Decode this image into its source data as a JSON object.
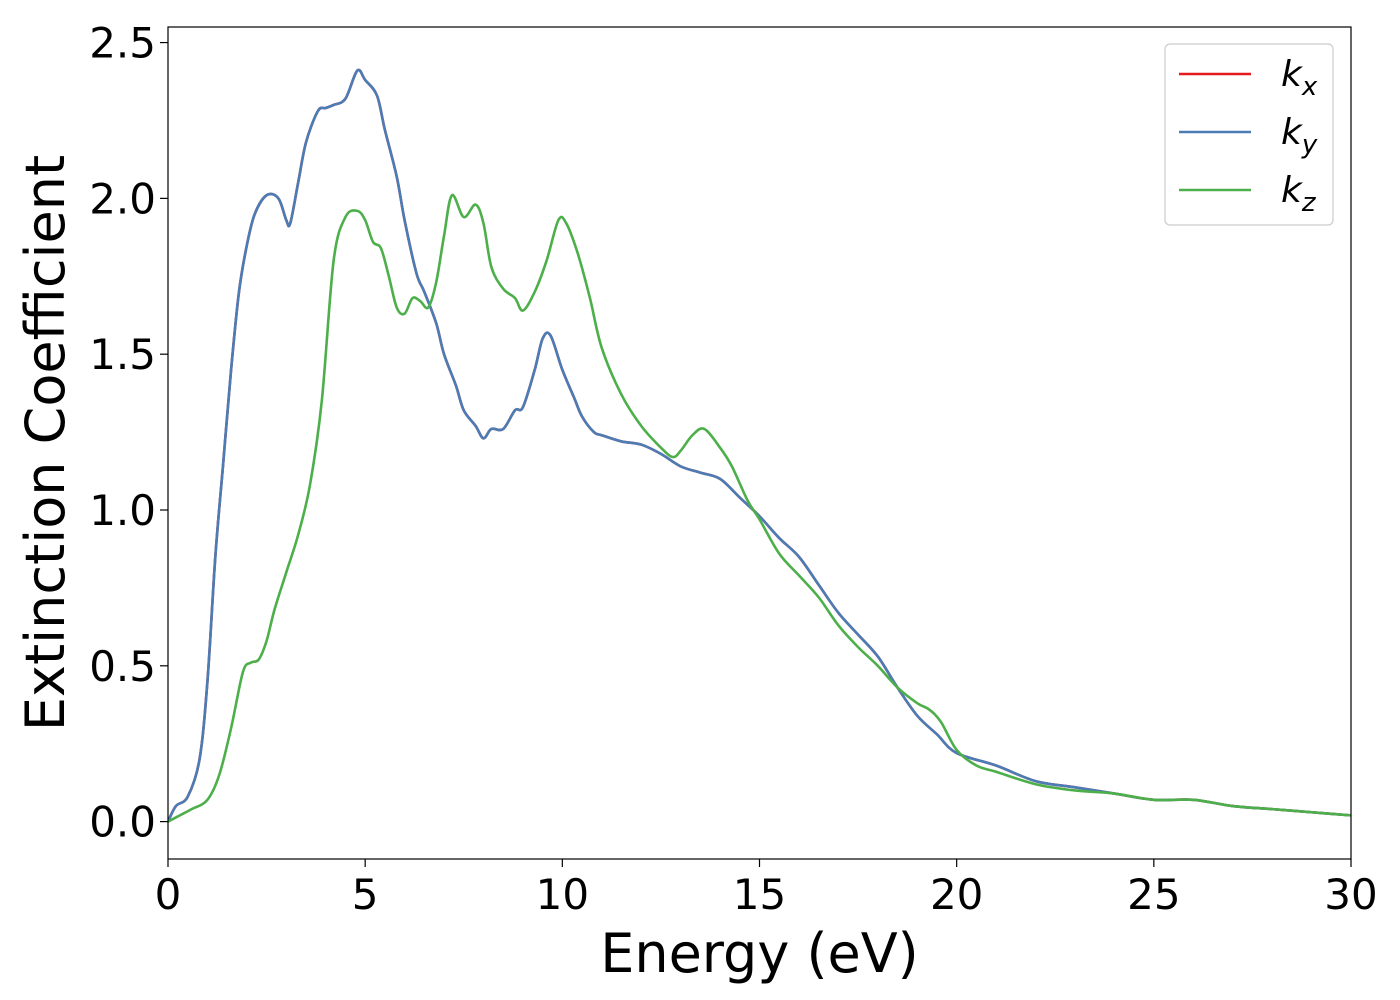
{
  "chart_data": {
    "type": "line",
    "title": "",
    "xlabel": "Energy (eV)",
    "ylabel": "Extinction Coefficient",
    "xlim": [
      0,
      30
    ],
    "ylim": [
      -0.12,
      2.55
    ],
    "xticks": [
      0,
      5,
      10,
      15,
      20,
      25,
      30
    ],
    "xtick_labels": [
      "0",
      "5",
      "10",
      "15",
      "20",
      "25",
      "30"
    ],
    "yticks": [
      0.0,
      0.5,
      1.0,
      1.5,
      2.0,
      2.5
    ],
    "ytick_labels": [
      "0.0",
      "0.5",
      "1.0",
      "1.5",
      "2.0",
      "2.5"
    ],
    "grid": false,
    "legend_position": "top-right",
    "series": [
      {
        "name": "k",
        "subscript": "x",
        "color": "#e41a1c",
        "x": [
          0,
          0.2,
          0.5,
          0.8,
          1.0,
          1.2,
          1.4,
          1.6,
          1.8,
          2.0,
          2.2,
          2.5,
          2.8,
          3.0,
          3.1,
          3.3,
          3.5,
          3.8,
          4.0,
          4.2,
          4.5,
          4.8,
          5.0,
          5.3,
          5.5,
          5.8,
          6.0,
          6.3,
          6.5,
          6.8,
          7.0,
          7.3,
          7.5,
          7.8,
          8.0,
          8.2,
          8.5,
          8.8,
          9.0,
          9.3,
          9.5,
          9.7,
          10.0,
          10.3,
          10.5,
          10.8,
          11.0,
          11.5,
          12.0,
          12.5,
          13.0,
          13.5,
          14.0,
          14.5,
          15.0,
          15.5,
          16.0,
          16.5,
          17.0,
          17.5,
          18.0,
          18.5,
          19.0,
          19.5,
          20.0,
          21.0,
          22.0,
          23.0,
          24.0,
          25.0,
          26.0,
          27.0,
          28.0,
          29.0,
          30.0
        ],
        "y": [
          0.0,
          0.05,
          0.08,
          0.2,
          0.45,
          0.85,
          1.15,
          1.45,
          1.7,
          1.85,
          1.95,
          2.01,
          2.0,
          1.93,
          1.92,
          2.05,
          2.18,
          2.28,
          2.29,
          2.3,
          2.32,
          2.41,
          2.38,
          2.33,
          2.22,
          2.07,
          1.93,
          1.76,
          1.7,
          1.6,
          1.5,
          1.4,
          1.32,
          1.27,
          1.23,
          1.26,
          1.26,
          1.32,
          1.33,
          1.45,
          1.55,
          1.56,
          1.45,
          1.36,
          1.3,
          1.25,
          1.24,
          1.22,
          1.21,
          1.18,
          1.14,
          1.12,
          1.1,
          1.04,
          0.98,
          0.91,
          0.85,
          0.76,
          0.67,
          0.6,
          0.53,
          0.43,
          0.34,
          0.28,
          0.22,
          0.18,
          0.13,
          0.11,
          0.09,
          0.07,
          0.07,
          0.05,
          0.04,
          0.03,
          0.02
        ]
      },
      {
        "name": "k",
        "subscript": "y",
        "color": "#4a7cb5",
        "x": [
          0,
          0.2,
          0.5,
          0.8,
          1.0,
          1.2,
          1.4,
          1.6,
          1.8,
          2.0,
          2.2,
          2.5,
          2.8,
          3.0,
          3.1,
          3.3,
          3.5,
          3.8,
          4.0,
          4.2,
          4.5,
          4.8,
          5.0,
          5.3,
          5.5,
          5.8,
          6.0,
          6.3,
          6.5,
          6.8,
          7.0,
          7.3,
          7.5,
          7.8,
          8.0,
          8.2,
          8.5,
          8.8,
          9.0,
          9.3,
          9.5,
          9.7,
          10.0,
          10.3,
          10.5,
          10.8,
          11.0,
          11.5,
          12.0,
          12.5,
          13.0,
          13.5,
          14.0,
          14.5,
          15.0,
          15.5,
          16.0,
          16.5,
          17.0,
          17.5,
          18.0,
          18.5,
          19.0,
          19.5,
          20.0,
          21.0,
          22.0,
          23.0,
          24.0,
          25.0,
          26.0,
          27.0,
          28.0,
          29.0,
          30.0
        ],
        "y": [
          0.0,
          0.05,
          0.08,
          0.2,
          0.45,
          0.85,
          1.15,
          1.45,
          1.7,
          1.85,
          1.95,
          2.01,
          2.0,
          1.93,
          1.92,
          2.05,
          2.18,
          2.28,
          2.29,
          2.3,
          2.32,
          2.41,
          2.38,
          2.33,
          2.22,
          2.07,
          1.93,
          1.76,
          1.7,
          1.6,
          1.5,
          1.4,
          1.32,
          1.27,
          1.23,
          1.26,
          1.26,
          1.32,
          1.33,
          1.45,
          1.55,
          1.56,
          1.45,
          1.36,
          1.3,
          1.25,
          1.24,
          1.22,
          1.21,
          1.18,
          1.14,
          1.12,
          1.1,
          1.04,
          0.98,
          0.91,
          0.85,
          0.76,
          0.67,
          0.6,
          0.53,
          0.43,
          0.34,
          0.28,
          0.22,
          0.18,
          0.13,
          0.11,
          0.09,
          0.07,
          0.07,
          0.05,
          0.04,
          0.03,
          0.02
        ]
      },
      {
        "name": "k",
        "subscript": "z",
        "color": "#4daf4a",
        "x": [
          0,
          0.3,
          0.6,
          1.0,
          1.3,
          1.6,
          1.9,
          2.1,
          2.3,
          2.5,
          2.7,
          3.0,
          3.3,
          3.6,
          3.9,
          4.2,
          4.5,
          4.8,
          5.0,
          5.2,
          5.4,
          5.6,
          5.8,
          6.0,
          6.2,
          6.4,
          6.6,
          6.8,
          7.0,
          7.2,
          7.5,
          7.8,
          8.0,
          8.2,
          8.5,
          8.8,
          9.0,
          9.3,
          9.6,
          9.9,
          10.1,
          10.4,
          10.7,
          11.0,
          11.5,
          12.0,
          12.5,
          12.8,
          13.0,
          13.3,
          13.6,
          14.0,
          14.3,
          14.7,
          15.0,
          15.5,
          16.0,
          16.5,
          17.0,
          17.5,
          18.0,
          18.5,
          19.0,
          19.3,
          19.6,
          20.0,
          20.5,
          21.0,
          22.0,
          23.0,
          24.0,
          25.0,
          26.0,
          27.0,
          28.0,
          29.0,
          30.0
        ],
        "y": [
          0.0,
          0.02,
          0.04,
          0.07,
          0.15,
          0.3,
          0.48,
          0.51,
          0.52,
          0.58,
          0.68,
          0.8,
          0.92,
          1.08,
          1.35,
          1.8,
          1.94,
          1.96,
          1.93,
          1.86,
          1.84,
          1.75,
          1.65,
          1.63,
          1.68,
          1.67,
          1.65,
          1.73,
          1.88,
          2.01,
          1.94,
          1.98,
          1.92,
          1.78,
          1.71,
          1.68,
          1.64,
          1.7,
          1.8,
          1.93,
          1.92,
          1.82,
          1.68,
          1.52,
          1.37,
          1.27,
          1.2,
          1.17,
          1.19,
          1.24,
          1.26,
          1.2,
          1.14,
          1.03,
          0.97,
          0.86,
          0.79,
          0.72,
          0.63,
          0.56,
          0.5,
          0.43,
          0.38,
          0.36,
          0.32,
          0.23,
          0.18,
          0.16,
          0.12,
          0.1,
          0.09,
          0.07,
          0.07,
          0.05,
          0.04,
          0.03,
          0.02
        ]
      }
    ]
  }
}
